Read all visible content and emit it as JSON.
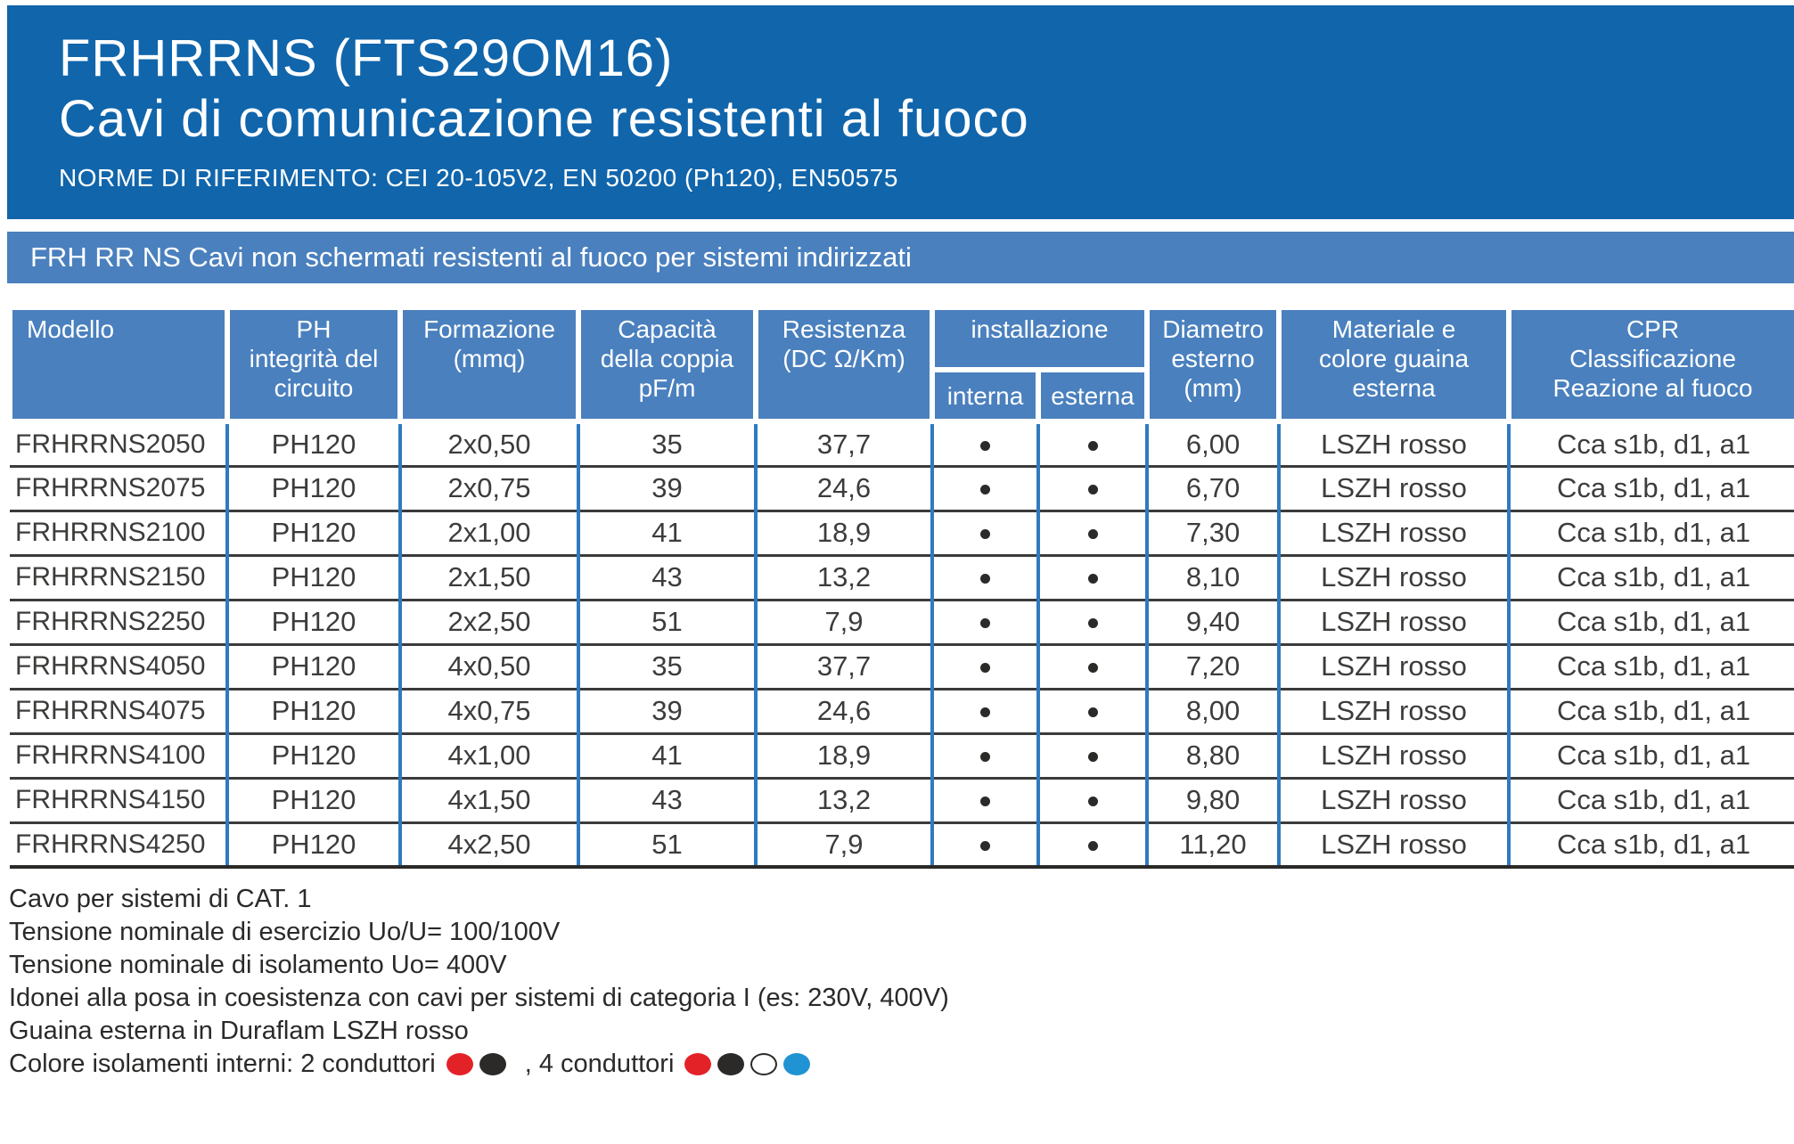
{
  "colors": {
    "header_blue": "#1065AB",
    "panel_blue": "#4A80BE",
    "grid_blue": "#2F7AC1",
    "grid_dark": "#3B3B3A",
    "text_dark": "#3C3C3B",
    "dot_red": "#E32228",
    "dot_black": "#2B2A29",
    "dot_white": "#FFFFFF",
    "dot_blue": "#2093D3"
  },
  "header": {
    "title": "FRHRRNS (FTS29OM16)",
    "subtitle": "Cavi di comunicazione resistenti al fuoco",
    "norms": "NORME DI RIFERIMENTO: CEI 20-105V2, EN 50200 (Ph120), EN50575"
  },
  "banner": {
    "text": "FRH RR NS Cavi non schermati resistenti al fuoco per sistemi indirizzati"
  },
  "table": {
    "headers": {
      "modello": "Modello",
      "ph": "PH\nintegrità del\ncircuito",
      "formazione": "Formazione\n(mmq)",
      "capacita": "Capacità\ndella coppia\npF/m",
      "resistenza": "Resistenza\n(DC Ω/Km)",
      "installazione": "installazione",
      "interna": "interna",
      "esterna": "esterna",
      "diametro": "Diametro\nesterno\n(mm)",
      "materiale": "Materiale e\ncolore guaina\nesterna",
      "cpr": "CPR\nClassificazione\nReazione al fuoco"
    },
    "rows": [
      {
        "modello": "FRHRRNS2050",
        "ph": "PH120",
        "formazione": "2x0,50",
        "capacita": "35",
        "resistenza": "37,7",
        "interna": true,
        "esterna": true,
        "diametro": "6,00",
        "materiale": "LSZH rosso",
        "cpr": "Cca s1b, d1, a1"
      },
      {
        "modello": "FRHRRNS2075",
        "ph": "PH120",
        "formazione": "2x0,75",
        "capacita": "39",
        "resistenza": "24,6",
        "interna": true,
        "esterna": true,
        "diametro": "6,70",
        "materiale": "LSZH rosso",
        "cpr": "Cca s1b, d1, a1"
      },
      {
        "modello": "FRHRRNS2100",
        "ph": "PH120",
        "formazione": "2x1,00",
        "capacita": "41",
        "resistenza": "18,9",
        "interna": true,
        "esterna": true,
        "diametro": "7,30",
        "materiale": "LSZH rosso",
        "cpr": "Cca s1b, d1, a1"
      },
      {
        "modello": "FRHRRNS2150",
        "ph": "PH120",
        "formazione": "2x1,50",
        "capacita": "43",
        "resistenza": "13,2",
        "interna": true,
        "esterna": true,
        "diametro": "8,10",
        "materiale": "LSZH rosso",
        "cpr": "Cca s1b, d1, a1"
      },
      {
        "modello": "FRHRRNS2250",
        "ph": "PH120",
        "formazione": "2x2,50",
        "capacita": "51",
        "resistenza": "7,9",
        "interna": true,
        "esterna": true,
        "diametro": "9,40",
        "materiale": "LSZH rosso",
        "cpr": "Cca s1b, d1, a1"
      },
      {
        "modello": "FRHRRNS4050",
        "ph": "PH120",
        "formazione": "4x0,50",
        "capacita": "35",
        "resistenza": "37,7",
        "interna": true,
        "esterna": true,
        "diametro": "7,20",
        "materiale": "LSZH rosso",
        "cpr": "Cca s1b, d1, a1"
      },
      {
        "modello": "FRHRRNS4075",
        "ph": "PH120",
        "formazione": "4x0,75",
        "capacita": "39",
        "resistenza": "24,6",
        "interna": true,
        "esterna": true,
        "diametro": "8,00",
        "materiale": "LSZH rosso",
        "cpr": "Cca s1b, d1, a1"
      },
      {
        "modello": "FRHRRNS4100",
        "ph": "PH120",
        "formazione": "4x1,00",
        "capacita": "41",
        "resistenza": "18,9",
        "interna": true,
        "esterna": true,
        "diametro": "8,80",
        "materiale": "LSZH rosso",
        "cpr": "Cca s1b, d1, a1"
      },
      {
        "modello": "FRHRRNS4150",
        "ph": "PH120",
        "formazione": "4x1,50",
        "capacita": "43",
        "resistenza": "13,2",
        "interna": true,
        "esterna": true,
        "diametro": "9,80",
        "materiale": "LSZH rosso",
        "cpr": "Cca s1b, d1, a1"
      },
      {
        "modello": "FRHRRNS4250",
        "ph": "PH120",
        "formazione": "4x2,50",
        "capacita": "51",
        "resistenza": "7,9",
        "interna": true,
        "esterna": true,
        "diametro": "11,20",
        "materiale": "LSZH rosso",
        "cpr": "Cca s1b, d1, a1"
      }
    ]
  },
  "footer": {
    "lines": [
      "Cavo per sistemi di CAT. 1",
      "Tensione nominale di esercizio Uo/U= 100/100V",
      "Tensione nominale di isolamento Uo= 400V",
      "Idonei alla posa in coesistenza con cavi per sistemi di categoria I (es: 230V, 400V)",
      "Guaina esterna in Duraflam LSZH rosso"
    ],
    "colors_line": {
      "prefix": "Colore isolamenti interni: 2 conduttori",
      "middle": ", 4 conduttori",
      "two_conductors": [
        "#E32228",
        "#2B2A29"
      ],
      "four_conductors": [
        "#E32228",
        "#2B2A29",
        "#FFFFFF",
        "#2093D3"
      ]
    }
  }
}
